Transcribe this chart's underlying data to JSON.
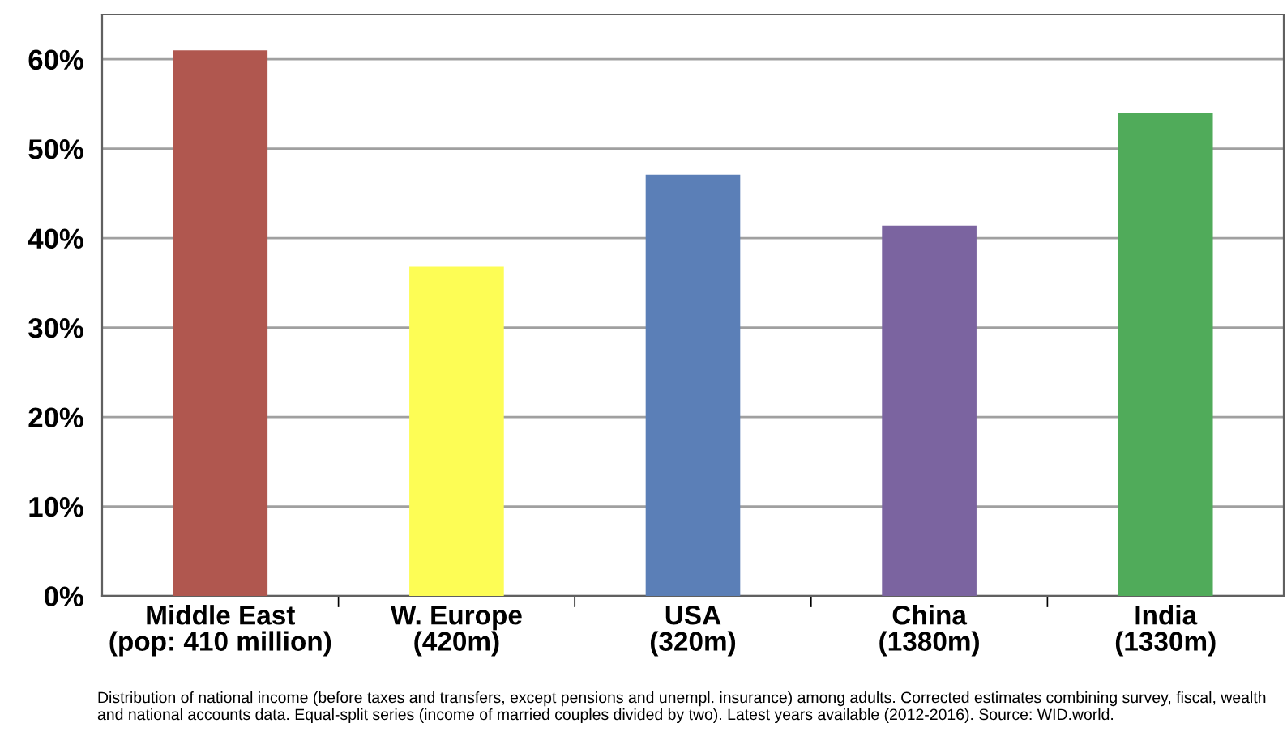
{
  "chart_data": {
    "type": "bar",
    "categories": [
      "Middle East\n(pop: 410 million)",
      "W. Europe\n(420m)",
      "USA\n(320m)",
      "China\n(1380m)",
      "India\n(1330m)"
    ],
    "values": [
      61.0,
      36.8,
      47.1,
      41.4,
      54.0
    ],
    "colors": [
      "#b0574f",
      "#fdfd55",
      "#5b7fb7",
      "#7b64a0",
      "#50ab5a"
    ],
    "ylim": [
      0,
      65
    ],
    "yticks": [
      {
        "value": 0,
        "label": "0%"
      },
      {
        "value": 10,
        "label": "10%"
      },
      {
        "value": 20,
        "label": "20%"
      },
      {
        "value": 30,
        "label": "30%"
      },
      {
        "value": 40,
        "label": "40%"
      },
      {
        "value": 50,
        "label": "50%"
      },
      {
        "value": 60,
        "label": "60%"
      }
    ],
    "grid": "y",
    "annotations": [
      "Distribution of national income (before taxes and transfers, except pensions and unempl. insurance) among adults. Corrected estimates combining survey, fiscal, wealth and national accounts data. Equal-split series (income of married couples divided by two). Latest years available (2012-2016). Source: WID.world."
    ]
  }
}
